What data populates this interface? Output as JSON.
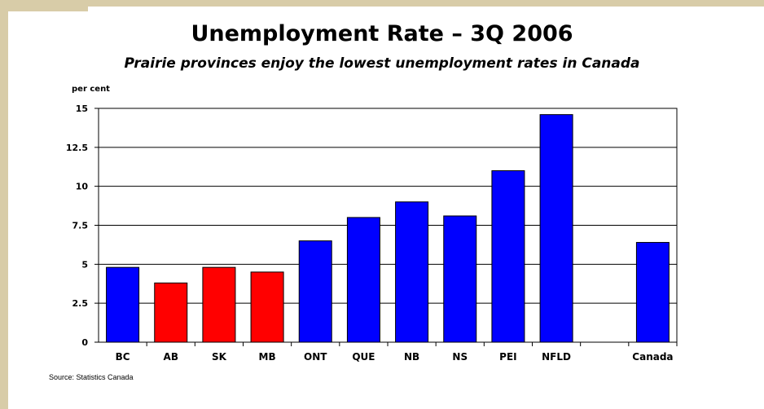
{
  "chart_data": {
    "type": "bar",
    "title": "Unemployment Rate – 3Q 2006",
    "subtitle": "Prairie provinces enjoy the lowest unemployment rates in Canada",
    "ylabel": "per cent",
    "xlabel": "",
    "ylim": [
      0,
      15
    ],
    "yticks": [
      "0",
      "2.5",
      "5",
      "7.5",
      "10",
      "12.5",
      "15"
    ],
    "ytick_values": [
      0,
      2.5,
      5,
      7.5,
      10,
      12.5,
      15
    ],
    "categories": [
      "BC",
      "AB",
      "SK",
      "MB",
      "ONT",
      "QUE",
      "NB",
      "NS",
      "PEI",
      "NFLD",
      "",
      "Canada"
    ],
    "values": [
      4.8,
      3.8,
      4.8,
      4.5,
      6.5,
      8.0,
      9.0,
      8.1,
      11.0,
      14.6,
      null,
      6.4
    ],
    "bar_colors": [
      "#0000ff",
      "#ff0000",
      "#ff0000",
      "#ff0000",
      "#0000ff",
      "#0000ff",
      "#0000ff",
      "#0000ff",
      "#0000ff",
      "#0000ff",
      null,
      "#0000ff"
    ],
    "grid": true,
    "legend": "none"
  },
  "source": "Source: Statistics Canada",
  "colors": {
    "blue": "#0000ff",
    "red": "#ff0000",
    "frame": "#d8cca8"
  }
}
